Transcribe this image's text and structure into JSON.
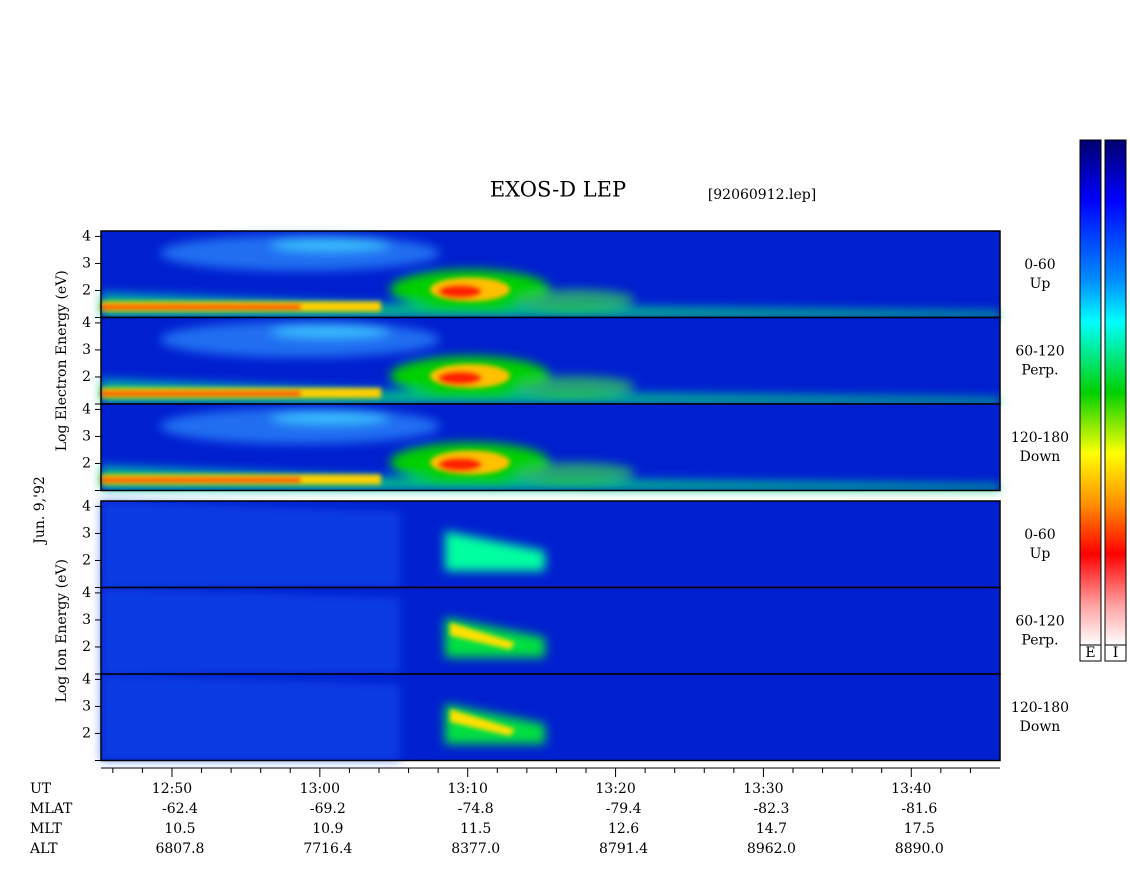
{
  "chart_data": {
    "type": "spectrogram",
    "title": "EXOS-D LEP",
    "subtitle": "[92060912.lep]",
    "date_label": "Jun. 9,'92",
    "groups": [
      {
        "label": "Log  Electron  Energy (eV)",
        "species": "electron",
        "panels": [
          {
            "label": [
              "0-60",
              "Up"
            ],
            "ylim": [
              1,
              4.2
            ],
            "yticks": [
              2,
              3,
              4
            ]
          },
          {
            "label": [
              "60-120",
              "Perp."
            ],
            "ylim": [
              1,
              4.2
            ],
            "yticks": [
              2,
              3,
              4
            ]
          },
          {
            "label": [
              "120-180",
              "Down"
            ],
            "ylim": [
              1,
              4.2
            ],
            "yticks": [
              2,
              3,
              4
            ]
          }
        ]
      },
      {
        "label": "Log  Ion  Energy (eV)",
        "species": "ion",
        "panels": [
          {
            "label": [
              "0-60",
              "Up"
            ],
            "ylim": [
              1,
              4.2
            ],
            "yticks": [
              2,
              3,
              4
            ]
          },
          {
            "label": [
              "60-120",
              "Perp."
            ],
            "ylim": [
              1,
              4.2
            ],
            "yticks": [
              2,
              3,
              4
            ]
          },
          {
            "label": [
              "120-180",
              "Down"
            ],
            "ylim": [
              1,
              4.2
            ],
            "yticks": [
              2,
              3,
              4
            ]
          }
        ]
      }
    ],
    "xlim": [
      765.2,
      826
    ],
    "xticks": [
      {
        "value": 770,
        "label": "12:50"
      },
      {
        "value": 780,
        "label": "13:00"
      },
      {
        "value": 790,
        "label": "13:10"
      },
      {
        "value": 800,
        "label": "13:20"
      },
      {
        "value": 810,
        "label": "13:30"
      },
      {
        "value": 820,
        "label": "13:40"
      }
    ],
    "minor_xticks": [
      766,
      768,
      772,
      774,
      776,
      778,
      782,
      784,
      786,
      788,
      792,
      794,
      796,
      798,
      802,
      804,
      806,
      808,
      812,
      814,
      816,
      818,
      822,
      824
    ],
    "orbit": [
      {
        "name": "UT",
        "values": null
      },
      {
        "name": "MLAT",
        "values": [
          "-62.4",
          "-69.2",
          "-74.8",
          "-79.4",
          "-82.3",
          "-81.6"
        ]
      },
      {
        "name": "MLT",
        "values": [
          "10.5",
          "10.9",
          "11.5",
          "12.6",
          "14.7",
          "17.5"
        ]
      },
      {
        "name": "ALT",
        "values": [
          "6807.8",
          "7716.4",
          "8377.0",
          "8791.4",
          "8962.0",
          "8890.0"
        ]
      }
    ],
    "colorbars": [
      "E",
      "I"
    ]
  }
}
